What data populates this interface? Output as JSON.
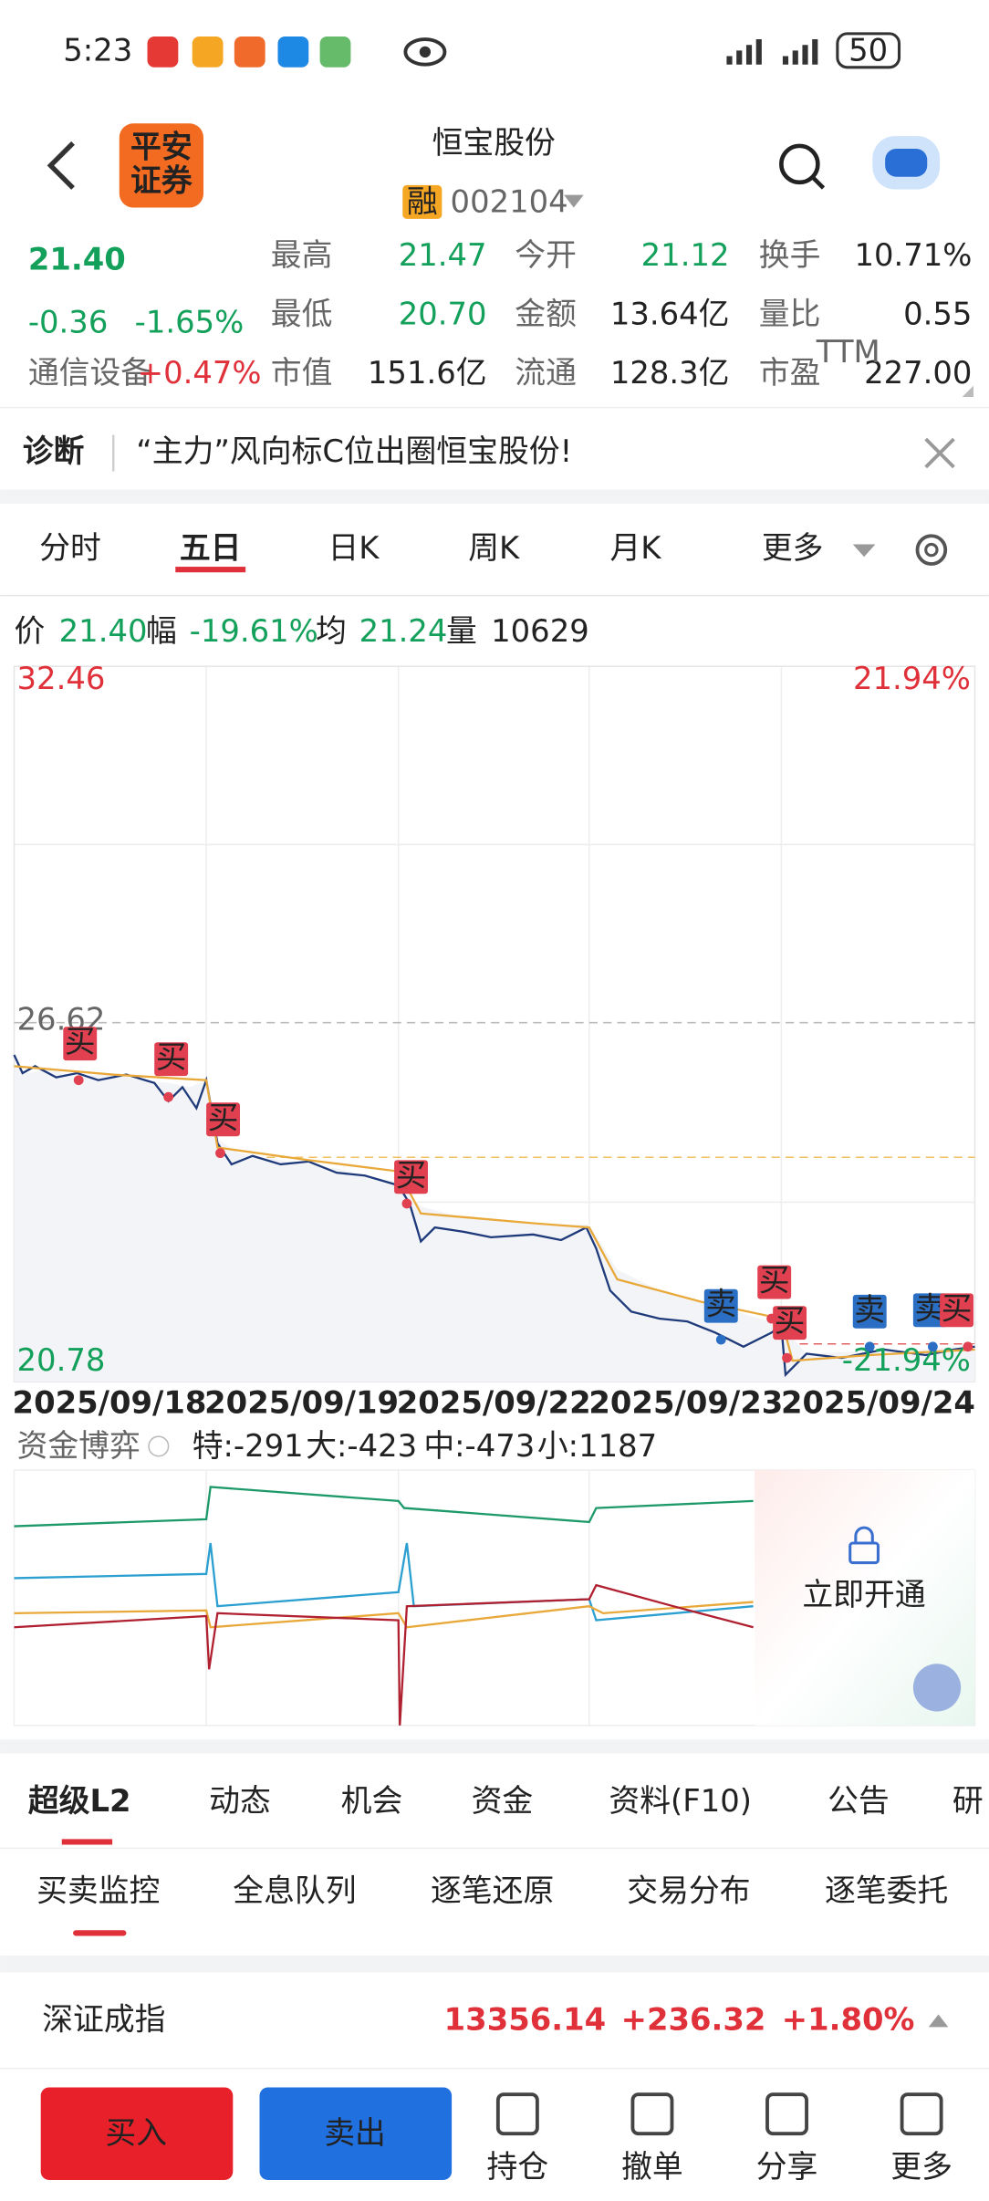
{
  "status": {
    "time": "5:23",
    "battery": "50"
  },
  "header": {
    "title": "恒宝股份",
    "tag": "融",
    "code": "002104",
    "logo": [
      "平安",
      "证券"
    ]
  },
  "quote": {
    "price": "21.40",
    "change": "-0.36",
    "pct": "-1.65%",
    "sector": "通信设备",
    "sector_pct": "+0.47%",
    "stats": [
      [
        "最高",
        "21.47"
      ],
      [
        "今开",
        "21.12"
      ],
      [
        "换手",
        "10.71%"
      ],
      [
        "最低",
        "20.70"
      ],
      [
        "金额",
        "13.64亿"
      ],
      [
        "量比",
        "0.55"
      ],
      [
        "市值",
        "151.6亿"
      ],
      [
        "流通",
        "128.3亿"
      ],
      [
        "市盈",
        "227.00"
      ]
    ],
    "ttm": "TTM"
  },
  "diagnosis": {
    "label": "诊断",
    "text": "“主力”风向标C位出圈恒宝股份!"
  },
  "tabs": [
    "分时",
    "五日",
    "日K",
    "周K",
    "月K",
    "更多"
  ],
  "info": [
    [
      "价",
      "21.40"
    ],
    [
      "幅",
      "-19.61%"
    ],
    [
      "均",
      "21.24"
    ],
    [
      "量",
      "10629"
    ]
  ],
  "axis": {
    "top": "32.46",
    "top_pct": "21.94%",
    "mid": "26.62",
    "bottom": "20.78",
    "bottom_pct": "-21.94%"
  },
  "dates": [
    "2025/09/18",
    "2025/09/19",
    "2025/09/22",
    "2025/09/23",
    "2025/09/24"
  ],
  "signals": [
    "买",
    "买",
    "买",
    "买",
    "卖",
    "买",
    "买",
    "卖",
    "卖",
    "买"
  ],
  "fund": {
    "title": "资金博弈",
    "items": [
      "特:-291",
      "大:-423",
      "中:-473",
      "小:1187"
    ],
    "unlock": "立即开通"
  },
  "section_tabs": [
    "超级L2",
    "动态",
    "机会",
    "资金",
    "资料(F10)",
    "公告",
    "研"
  ],
  "sub_tabs": [
    "买卖监控",
    "全息队列",
    "逐笔还原",
    "交易分布",
    "逐笔委托"
  ],
  "index": {
    "name": "深证成指",
    "value": "13356.14",
    "change": "+236.32",
    "pct": "+1.80%"
  },
  "buttons": [
    "买入",
    "卖出"
  ],
  "tools": [
    "持仓",
    "撤单",
    "分享",
    "更多"
  ]
}
